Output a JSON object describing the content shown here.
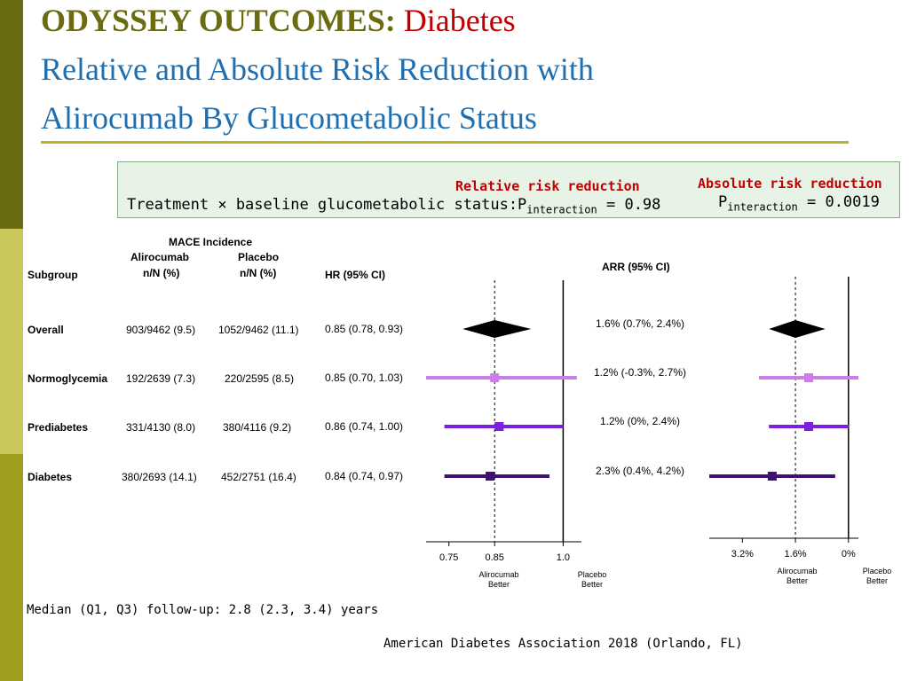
{
  "title": {
    "bold": "ODYSSEY OUTCOMES:",
    "red": "Diabetes",
    "line2": "Relative and Absolute Risk Reduction with",
    "line3": "Alirocumab By Glucometabolic Status"
  },
  "interaction_box": {
    "treatment_label": "Treatment × baseline glucometabolic status:",
    "rrr_heading": "Relative risk reduction",
    "arr_heading": "Absolute risk reduction",
    "p_letter": "P",
    "p_sub": "interaction",
    "rrr_p": "= 0.98",
    "arr_p": "= 0.0019"
  },
  "table": {
    "mace_heading": "MACE Incidence",
    "subgroup_heading": "Subgroup",
    "alirocumab_heading": "Alirocumab",
    "placebo_heading": "Placebo",
    "nn_heading": "n/N (%)",
    "hr_heading": "HR (95% CI)",
    "arr_heading": "ARR (95% CI)"
  },
  "footnote": "Median (Q1, Q3) follow-up: 2.8 (2.3, 3.4) years",
  "citation": "American Diabetes Association 2018 (Orlando, FL)",
  "chart_data": [
    {
      "type": "forest",
      "name": "hr",
      "x_ticks": [
        "0.75",
        "0.85",
        "1.0"
      ],
      "xlim": [
        0.7,
        1.04
      ],
      "reference_lines": [
        0.85,
        1.0
      ],
      "left_label": "Alirocumab Better",
      "right_label": "Placebo Better",
      "rows": [
        {
          "subgroup": "Overall",
          "alirocumab": "903/9462 (9.5)",
          "placebo": "1052/9462 (11.1)",
          "label": "0.85 (0.78, 0.93)",
          "est": 0.85,
          "lo": 0.78,
          "hi": 0.93,
          "marker": "diamond",
          "color": "#000000"
        },
        {
          "subgroup": "Normoglycemia",
          "alirocumab": "192/2639 (7.3)",
          "placebo": "220/2595 (8.5)",
          "label": "0.85 (0.70, 1.03)",
          "est": 0.85,
          "lo": 0.7,
          "hi": 1.03,
          "marker": "square",
          "color": "#cc7ee6"
        },
        {
          "subgroup": "Prediabetes",
          "alirocumab": "331/4130 (8.0)",
          "placebo": "380/4116 (9.2)",
          "label": "0.86 (0.74, 1.00)",
          "est": 0.86,
          "lo": 0.74,
          "hi": 1.0,
          "marker": "square",
          "color": "#7b1fe0"
        },
        {
          "subgroup": "Diabetes",
          "alirocumab": "380/2693 (14.1)",
          "placebo": "452/2751 (16.4)",
          "label": "0.84 (0.74, 0.97)",
          "est": 0.84,
          "lo": 0.74,
          "hi": 0.97,
          "marker": "square",
          "color": "#3d1270"
        }
      ]
    },
    {
      "type": "forest",
      "name": "arr",
      "x_ticks": [
        "3.2%",
        "1.6%",
        "0%"
      ],
      "xlim": [
        4.2,
        -0.3
      ],
      "reference_lines": [
        1.6,
        0
      ],
      "left_label": "Alirocumab Better",
      "right_label": "Placebo Better",
      "rows": [
        {
          "subgroup": "Overall",
          "label": "1.6% (0.7%, 2.4%)",
          "est": 1.6,
          "lo": 0.7,
          "hi": 2.4,
          "marker": "diamond",
          "color": "#000000"
        },
        {
          "subgroup": "Normoglycemia",
          "label": "1.2% (-0.3%, 2.7%)",
          "est": 1.2,
          "lo": -0.3,
          "hi": 2.7,
          "marker": "square",
          "color": "#cc7ee6"
        },
        {
          "subgroup": "Prediabetes",
          "label": "1.2% (0%, 2.4%)",
          "est": 1.2,
          "lo": 0.0,
          "hi": 2.4,
          "marker": "square",
          "color": "#7b1fe0"
        },
        {
          "subgroup": "Diabetes",
          "label": "2.3% (0.4%, 4.2%)",
          "est": 2.3,
          "lo": 0.4,
          "hi": 4.2,
          "marker": "square",
          "color": "#3d1270"
        }
      ]
    }
  ]
}
